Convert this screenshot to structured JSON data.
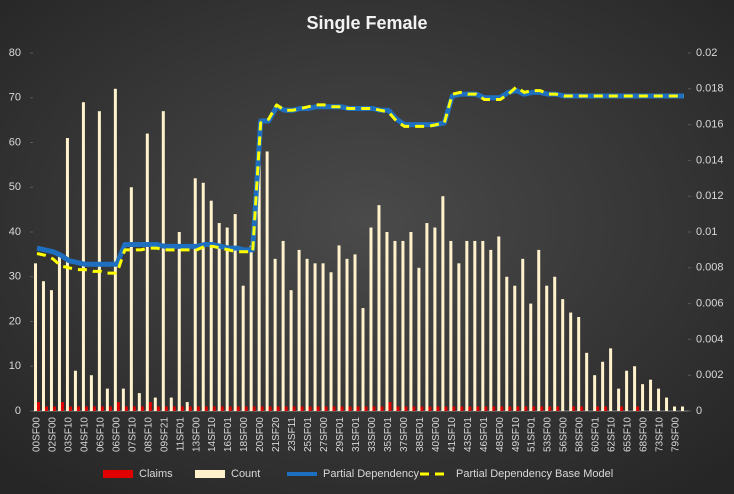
{
  "chart_data": {
    "type": "bar-line",
    "title": "Single Female",
    "categories": [
      "00SF00",
      null,
      "02SF00",
      null,
      "03SF10",
      null,
      "04SF10",
      null,
      "06SF10",
      null,
      "06SF00",
      null,
      "07SF10",
      null,
      "08SF10",
      null,
      "09SF21",
      null,
      "11SF01",
      null,
      "13SF00",
      null,
      "14SF10",
      null,
      "16SF01",
      null,
      "18SF00",
      null,
      "20SF00",
      null,
      "21SF20",
      null,
      "23SF11",
      null,
      "25SF01",
      null,
      "27SF00",
      null,
      "29SF01",
      null,
      "31SF01",
      null,
      "33SF00",
      null,
      "35SF01",
      null,
      "37SF00",
      null,
      "38SF01",
      null,
      "40SF00",
      null,
      "41SF10",
      null,
      "43SF01",
      null,
      "46SF01",
      null,
      "48SF00",
      null,
      "49SF10",
      null,
      "51SF01",
      null,
      "53SF00",
      null,
      "56SF00",
      null,
      "58SF00",
      null,
      "60SF01",
      null,
      "62SF10",
      null,
      "65SF10",
      null,
      "68SF00",
      null,
      "73SF10",
      null,
      "79SF00",
      null
    ],
    "series": [
      {
        "name": "Claims",
        "kind": "bar",
        "color": "#e00000",
        "values": [
          2,
          1,
          1,
          2,
          1,
          1,
          1,
          1,
          1,
          1,
          2,
          1,
          1,
          1,
          2,
          1,
          1,
          1,
          1,
          1,
          1,
          1,
          1,
          1,
          1,
          1,
          1,
          1,
          1,
          1,
          1,
          1,
          1,
          1,
          1,
          1,
          1,
          1,
          1,
          1,
          1,
          1,
          1,
          1,
          2,
          1,
          1,
          1,
          1,
          1,
          1,
          1,
          1,
          1,
          1,
          1,
          1,
          1,
          1,
          1,
          1,
          1,
          1,
          1,
          1,
          1,
          0,
          1,
          1,
          0,
          1,
          1,
          0,
          1,
          0,
          1,
          0,
          0,
          0,
          0,
          0,
          0
        ]
      },
      {
        "name": "Count",
        "kind": "bar",
        "color": "#fff2cc",
        "values": [
          33,
          29,
          27,
          35,
          61,
          9,
          69,
          8,
          67,
          5,
          72,
          5,
          50,
          4,
          62,
          3,
          67,
          3,
          40,
          2,
          52,
          51,
          47,
          42,
          41,
          44,
          28,
          37,
          55,
          58,
          34,
          38,
          27,
          36,
          34,
          33,
          33,
          31,
          37,
          34,
          35,
          23,
          41,
          46,
          40,
          38,
          38,
          40,
          32,
          42,
          41,
          48,
          38,
          33,
          38,
          38,
          38,
          36,
          39,
          30,
          28,
          34,
          24,
          36,
          28,
          30,
          25,
          22,
          21,
          13,
          8,
          11,
          14,
          5,
          9,
          10,
          6,
          7,
          5,
          3,
          1,
          1
        ]
      },
      {
        "name": "Partial Dependency",
        "kind": "line",
        "axis": "y2",
        "color": "#1f6fc0",
        "values": [
          0.0091,
          0.009,
          0.0089,
          0.0087,
          0.0084,
          0.0083,
          0.0082,
          0.0082,
          0.0082,
          0.0082,
          0.0082,
          0.0093,
          0.0093,
          0.0093,
          0.0093,
          0.0093,
          0.0092,
          0.0092,
          0.0092,
          0.0092,
          0.0092,
          0.0093,
          0.0093,
          0.0092,
          0.0091,
          0.0091,
          0.009,
          0.009,
          0.0162,
          0.0162,
          0.017,
          0.0168,
          0.0168,
          0.0169,
          0.0169,
          0.017,
          0.017,
          0.017,
          0.017,
          0.0169,
          0.0169,
          0.0169,
          0.0169,
          0.0168,
          0.0168,
          0.0163,
          0.016,
          0.016,
          0.016,
          0.016,
          0.016,
          0.0161,
          0.0176,
          0.0177,
          0.0177,
          0.0177,
          0.0175,
          0.0175,
          0.0175,
          0.0178,
          0.0179,
          0.0177,
          0.0178,
          0.0178,
          0.0177,
          0.0177,
          0.0176,
          0.0176,
          0.0176,
          0.0176,
          0.0176,
          0.0176,
          0.0176,
          0.0176,
          0.0176,
          0.0176,
          0.0176,
          0.0176,
          0.0176,
          0.0176,
          0.0176,
          0.0176
        ]
      },
      {
        "name": "Partial Dependency Base Model",
        "kind": "dash",
        "axis": "y2",
        "color": "#ffff00",
        "values": [
          0.0088,
          0.0087,
          0.0085,
          0.0081,
          0.008,
          0.0079,
          0.0079,
          0.0078,
          0.0078,
          0.0077,
          0.0077,
          0.009,
          0.009,
          0.009,
          0.0091,
          0.0091,
          0.009,
          0.009,
          0.009,
          0.009,
          0.009,
          0.0092,
          0.0092,
          0.0091,
          0.009,
          0.0089,
          0.0089,
          0.0089,
          0.0161,
          0.0163,
          0.0171,
          0.0168,
          0.0168,
          0.0169,
          0.017,
          0.0171,
          0.0171,
          0.017,
          0.017,
          0.0169,
          0.0169,
          0.0169,
          0.0169,
          0.0168,
          0.0167,
          0.0162,
          0.0159,
          0.0159,
          0.0159,
          0.0159,
          0.016,
          0.0161,
          0.0177,
          0.0178,
          0.0177,
          0.0177,
          0.0174,
          0.0174,
          0.0174,
          0.0177,
          0.0181,
          0.0178,
          0.0179,
          0.0179,
          0.0177,
          0.0177,
          0.0176,
          0.0176,
          0.0176,
          0.0176,
          0.0176,
          0.0176,
          0.0176,
          0.0176,
          0.0176,
          0.0176,
          0.0176,
          0.0176,
          0.0176,
          0.0176,
          0.0176,
          0.0176
        ]
      }
    ],
    "ylim": [
      0,
      80
    ],
    "yticks": [
      0,
      10,
      20,
      30,
      40,
      50,
      60,
      70,
      80
    ],
    "y2lim": [
      0,
      0.02
    ],
    "y2ticks": [
      0,
      0.002,
      0.004,
      0.006,
      0.008,
      0.01,
      0.012,
      0.014,
      0.016,
      0.018,
      0.02
    ],
    "legend": "bottom"
  }
}
